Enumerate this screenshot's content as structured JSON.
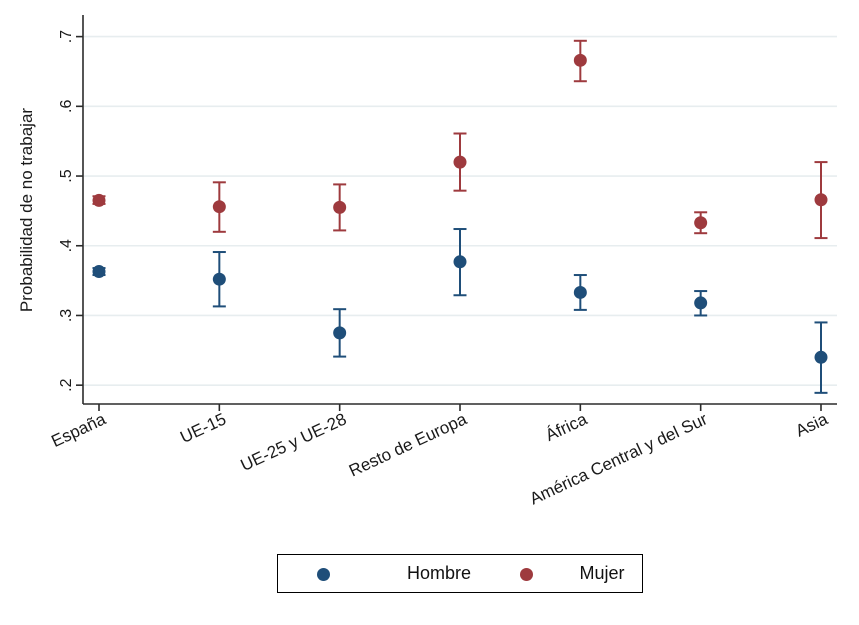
{
  "chart_data": {
    "type": "scatter",
    "subtype": "point-estimates-with-confidence-intervals",
    "title": "",
    "xlabel": "",
    "ylabel": "Probabilidad de no trabajar",
    "categories": [
      "España",
      "UE-15",
      "UE-25 y UE-28",
      "Resto de Europa",
      "África",
      "América Central y del Sur",
      "Asia"
    ],
    "yticks": [
      0.2,
      0.3,
      0.4,
      0.5,
      0.6,
      0.7
    ],
    "ytick_labels": [
      ".2",
      ".3",
      ".4",
      ".5",
      ".6",
      ".7"
    ],
    "ylim": [
      0.173,
      0.731
    ],
    "grid": true,
    "legend_position": "bottom-center",
    "series": [
      {
        "name": "Hombre",
        "color": "#1F4E79",
        "values": [
          0.363,
          0.352,
          0.275,
          0.377,
          0.333,
          0.318,
          0.24
        ],
        "ci_low": [
          0.358,
          0.313,
          0.241,
          0.329,
          0.308,
          0.3,
          0.189
        ],
        "ci_high": [
          0.368,
          0.391,
          0.309,
          0.424,
          0.358,
          0.335,
          0.29
        ]
      },
      {
        "name": "Mujer",
        "color": "#9E3A3E",
        "values": [
          0.465,
          0.456,
          0.455,
          0.52,
          0.666,
          0.433,
          0.466
        ],
        "ci_low": [
          0.46,
          0.42,
          0.422,
          0.479,
          0.636,
          0.418,
          0.411
        ],
        "ci_high": [
          0.471,
          0.491,
          0.488,
          0.561,
          0.694,
          0.448,
          0.52
        ]
      }
    ],
    "style": {
      "background": "#FFFFFF",
      "grid_color": "#E7EDEF",
      "axis_color": "#2B2B2B",
      "text_color": "#1A1A1A",
      "legend_border": "#000000"
    }
  }
}
